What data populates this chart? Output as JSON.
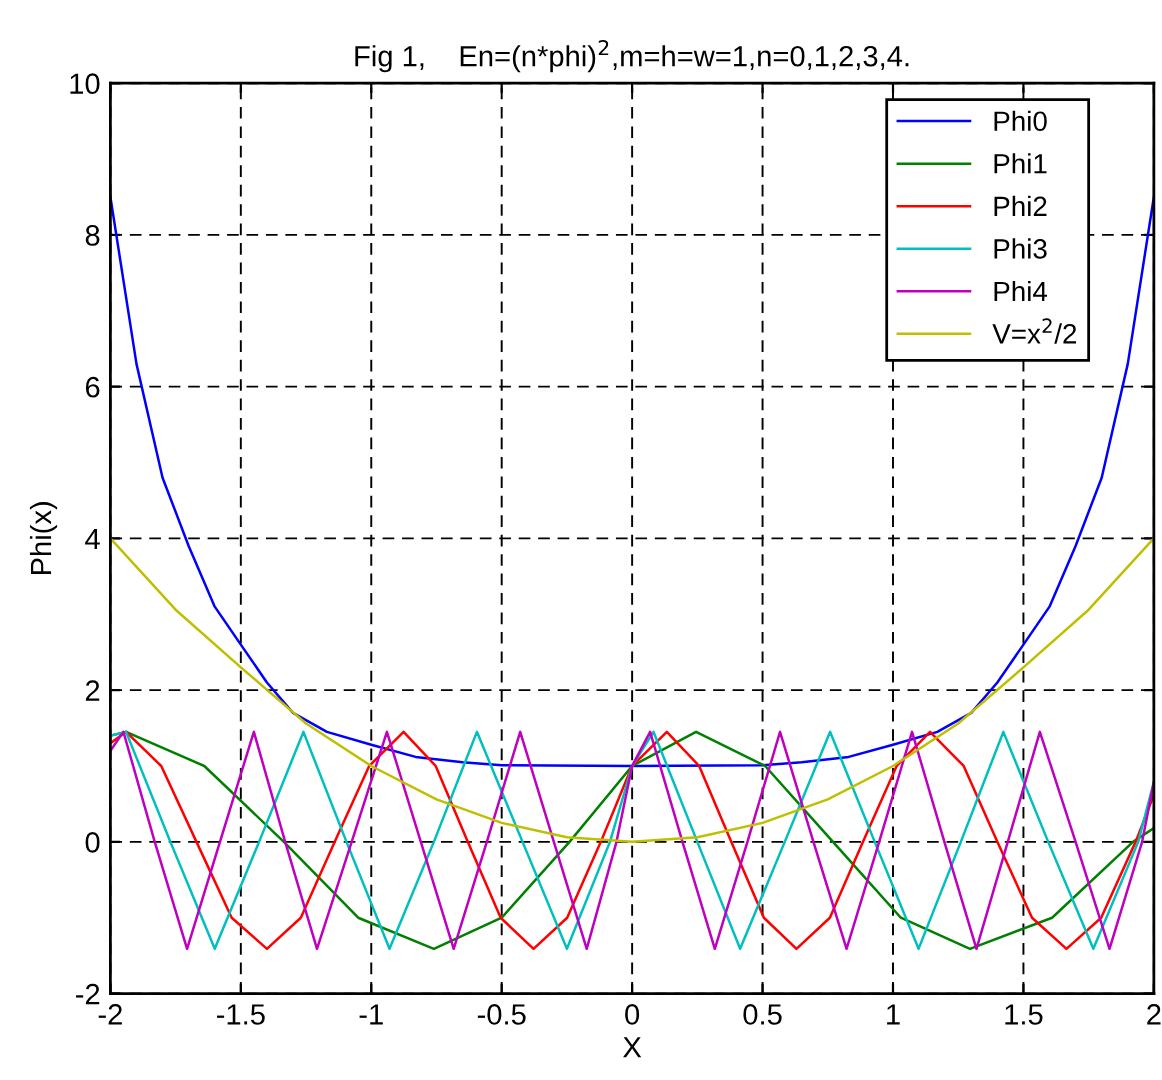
{
  "chart_data": {
    "type": "line",
    "title": "Fig 1,    En=(n*phi)$^{2}$,m=h=w=1,n=0,1,2,3,4.",
    "xlabel": "X",
    "ylabel": "Phi(x)",
    "xlim": [
      -2,
      2
    ],
    "ylim": [
      -2,
      10
    ],
    "xticks": [
      -2,
      -1.5,
      -1,
      -0.5,
      0,
      0.5,
      1,
      1.5,
      2
    ],
    "yticks": [
      -2,
      0,
      2,
      4,
      6,
      8,
      10
    ],
    "grid": true,
    "legend": "top right",
    "line_style": "solid",
    "marker": "none",
    "series": [
      {
        "name": "Phi0",
        "color": "#0000ff",
        "x": [
          -2,
          -1.9,
          -1.8,
          -1.7,
          -1.6,
          -1.5,
          -1.4,
          -1.3,
          -1.17,
          -1,
          -0.83,
          -0.65,
          -0.5,
          0,
          0.5,
          0.65,
          0.83,
          1,
          1.17,
          1.3,
          1.4,
          1.5,
          1.6,
          1.7,
          1.8,
          1.9,
          2
        ],
        "values": [
          8.5,
          6.3,
          4.8,
          3.9,
          3.1,
          2.6,
          2.1,
          1.7,
          1.45,
          1.28,
          1.12,
          1.05,
          1.01,
          1.0,
          1.01,
          1.05,
          1.12,
          1.28,
          1.45,
          1.7,
          2.1,
          2.6,
          3.1,
          3.9,
          4.8,
          6.3,
          8.5
        ]
      },
      {
        "name": "Phi1",
        "color": "#008000",
        "x": [
          -2,
          -1.94,
          -1.64,
          -1.335,
          -1.05,
          -0.76,
          -0.5,
          -0.24,
          0,
          0.245,
          0.51,
          0.77,
          1.03,
          1.295,
          1.61,
          1.92,
          2
        ],
        "values": [
          1.4,
          1.45,
          1.0,
          0,
          -1.0,
          -1.41,
          -1.0,
          0,
          1.0,
          1.45,
          1.0,
          0,
          -1.0,
          -1.41,
          -1.0,
          0,
          0.18
        ]
      },
      {
        "name": "Phi2",
        "color": "#ff0000",
        "x": [
          -2,
          -1.94,
          -1.805,
          -1.67,
          -1.535,
          -1.4,
          -1.27,
          -1.14,
          -1.008,
          -0.876,
          -0.753,
          -0.63,
          -0.504,
          -0.378,
          -0.249,
          -0.12,
          0,
          0.133,
          0.257,
          0.38,
          0.505,
          0.63,
          0.758,
          0.885,
          1.014,
          1.142,
          1.271,
          1.4,
          1.533,
          1.665,
          1.798,
          1.93,
          2
        ],
        "values": [
          1.3,
          1.45,
          1.0,
          0,
          -1.0,
          -1.41,
          -1.0,
          0,
          1.0,
          1.45,
          1.0,
          0,
          -1.0,
          -1.41,
          -1.0,
          0,
          1.0,
          1.45,
          1.0,
          0,
          -1.0,
          -1.41,
          -1.0,
          0,
          1.0,
          1.45,
          1.0,
          0,
          -1.0,
          -1.41,
          -1.0,
          0,
          0.62
        ]
      },
      {
        "name": "Phi3",
        "color": "#00bfbf",
        "x": [
          -2,
          -1.94,
          -1.77,
          -1.6,
          -1.43,
          -1.26,
          -1.095,
          -0.93,
          -0.76,
          -0.595,
          -0.42,
          -0.25,
          -0.085,
          0,
          0.082,
          0.25,
          0.414,
          0.585,
          0.759,
          0.93,
          1.098,
          1.26,
          1.423,
          1.595,
          1.768,
          1.94,
          2
        ],
        "values": [
          1.4,
          1.45,
          0,
          -1.41,
          0,
          1.45,
          0,
          -1.41,
          0,
          1.45,
          0,
          -1.41,
          0,
          1.0,
          1.45,
          0,
          -1.41,
          0,
          1.45,
          0,
          -1.41,
          0,
          1.45,
          0,
          -1.41,
          0,
          0.79
        ]
      },
      {
        "name": "Phi4",
        "color": "#bf00bf",
        "x": [
          -2,
          -1.95,
          -1.83,
          -1.706,
          -1.58,
          -1.45,
          -1.33,
          -1.208,
          -1.075,
          -0.94,
          -0.81,
          -0.684,
          -0.557,
          -0.429,
          -0.3,
          -0.174,
          -0.06,
          0,
          0.069,
          0.193,
          0.317,
          0.442,
          0.567,
          0.695,
          0.822,
          0.947,
          1.073,
          1.197,
          1.32,
          1.44,
          1.563,
          1.7,
          1.83,
          1.955,
          2
        ],
        "values": [
          1.2,
          1.45,
          0,
          -1.41,
          0,
          1.45,
          0,
          -1.41,
          0,
          1.45,
          0,
          -1.41,
          0,
          1.45,
          0,
          -1.41,
          0,
          1.0,
          1.45,
          0,
          -1.41,
          0,
          1.45,
          0,
          -1.41,
          0,
          1.45,
          0,
          -1.41,
          0,
          1.45,
          0,
          -1.41,
          0,
          0.79
        ]
      },
      {
        "name": "V=x$^{2}$/2",
        "color": "#bfbf00",
        "x": [
          -2,
          -1.75,
          -1.5,
          -1.25,
          -1,
          -0.75,
          -0.5,
          -0.25,
          0,
          0.25,
          0.5,
          0.75,
          1,
          1.25,
          1.5,
          1.75,
          2
        ],
        "values": [
          4,
          3.06,
          2.3,
          1.56,
          1.0,
          0.56,
          0.25,
          0.06,
          0,
          0.06,
          0.25,
          0.56,
          1.0,
          1.56,
          2.3,
          3.06,
          4
        ]
      }
    ]
  }
}
